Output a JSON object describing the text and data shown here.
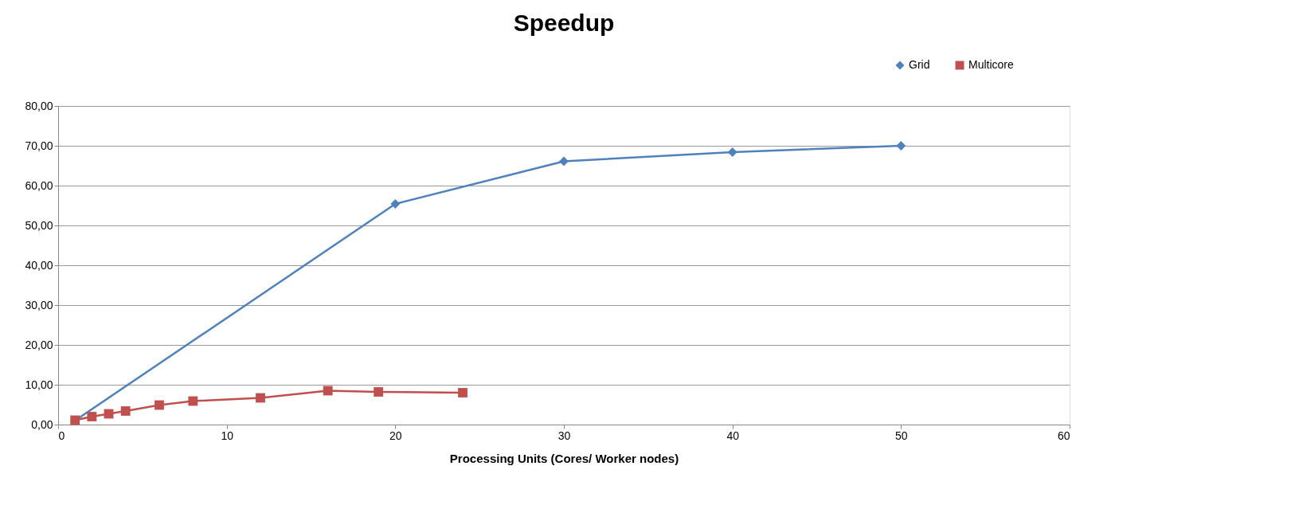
{
  "chart_data": {
    "type": "line",
    "title": "Speedup",
    "xlabel": "Processing Units (Cores/ Worker nodes)",
    "xlim": [
      0,
      60
    ],
    "xticks": [
      0,
      10,
      20,
      30,
      40,
      50,
      60
    ],
    "ylim": [
      0,
      80
    ],
    "yticks": [
      {
        "value": 0,
        "label": "0,00"
      },
      {
        "value": 10,
        "label": "10,00"
      },
      {
        "value": 20,
        "label": "20,00"
      },
      {
        "value": 30,
        "label": "30,00"
      },
      {
        "value": 40,
        "label": "40,00"
      },
      {
        "value": 50,
        "label": "50,00"
      },
      {
        "value": 60,
        "label": "60,00"
      },
      {
        "value": 70,
        "label": "70,00"
      },
      {
        "value": 80,
        "label": "80,00"
      }
    ],
    "grid": "y",
    "legend": "top right",
    "line_style": "solid",
    "series": [
      {
        "name": "Grid",
        "color": "#4f81bd",
        "marker": "diamond",
        "x": [
          1,
          20,
          30,
          40,
          50
        ],
        "values": [
          1.0,
          55.4,
          66.1,
          68.4,
          70.0
        ]
      },
      {
        "name": "Multicore",
        "color": "#c0504d",
        "marker": "square",
        "x": [
          1,
          2,
          3,
          4,
          6,
          8,
          12,
          16,
          19,
          24
        ],
        "values": [
          1.1,
          2.0,
          2.7,
          3.4,
          4.9,
          5.9,
          6.7,
          8.5,
          8.2,
          8.0
        ]
      }
    ]
  }
}
